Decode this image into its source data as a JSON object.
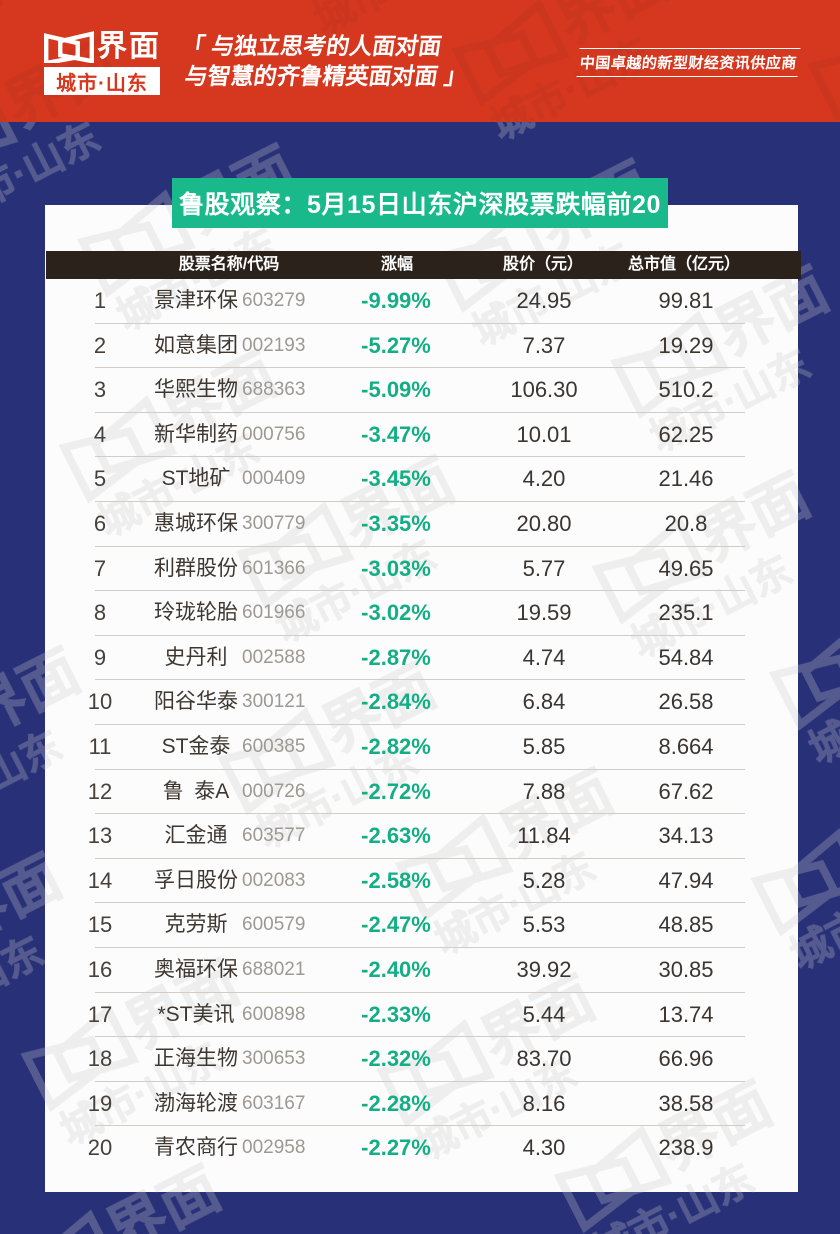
{
  "masthead": {
    "brand_name": "界面",
    "brand_sub": "城市·山东",
    "slogan_line1": "「 与独立思考的人面对面",
    "slogan_line2": "与智慧的齐鲁精英面对面 」",
    "tagline": "中国卓越的新型财经资讯供应商"
  },
  "banner": {
    "title": "鲁股观察：5月15日山东沪深股票跌幅前20"
  },
  "colors": {
    "header_red": "#d5381f",
    "body_blue": "#283078",
    "banner_green": "#19b98b",
    "change_green": "#13ae86",
    "table_head_dark": "#2b221b",
    "card_white": "#fcfcfc"
  },
  "chart_data": {
    "type": "table",
    "title": "鲁股观察：5月15日山东沪深股票跌幅前20",
    "columns": [
      "股票名称/代码",
      "涨幅",
      "股价（元）",
      "总市值（亿元）"
    ],
    "rows": [
      {
        "rank": "1",
        "name": "景津环保",
        "code": "603279",
        "change": "-9.99%",
        "price": "24.95",
        "cap": "99.81"
      },
      {
        "rank": "2",
        "name": "如意集团",
        "code": "002193",
        "change": "-5.27%",
        "price": "7.37",
        "cap": "19.29"
      },
      {
        "rank": "3",
        "name": "华熙生物",
        "code": "688363",
        "change": "-5.09%",
        "price": "106.30",
        "cap": "510.2"
      },
      {
        "rank": "4",
        "name": "新华制药",
        "code": "000756",
        "change": "-3.47%",
        "price": "10.01",
        "cap": "62.25"
      },
      {
        "rank": "5",
        "name": "ST地矿",
        "code": "000409",
        "change": "-3.45%",
        "price": "4.20",
        "cap": "21.46"
      },
      {
        "rank": "6",
        "name": "惠城环保",
        "code": "300779",
        "change": "-3.35%",
        "price": "20.80",
        "cap": "20.8"
      },
      {
        "rank": "7",
        "name": "利群股份",
        "code": "601366",
        "change": "-3.03%",
        "price": "5.77",
        "cap": "49.65"
      },
      {
        "rank": "8",
        "name": "玲珑轮胎",
        "code": "601966",
        "change": "-3.02%",
        "price": "19.59",
        "cap": "235.1"
      },
      {
        "rank": "9",
        "name": "史丹利",
        "code": "002588",
        "change": "-2.87%",
        "price": "4.74",
        "cap": "54.84"
      },
      {
        "rank": "10",
        "name": "阳谷华泰",
        "code": "300121",
        "change": "-2.84%",
        "price": "6.84",
        "cap": "26.58"
      },
      {
        "rank": "11",
        "name": "ST金泰",
        "code": "600385",
        "change": "-2.82%",
        "price": "5.85",
        "cap": "8.664"
      },
      {
        "rank": "12",
        "name": "鲁 泰A",
        "code": "000726",
        "change": "-2.72%",
        "price": "7.88",
        "cap": "67.62"
      },
      {
        "rank": "13",
        "name": "汇金通",
        "code": "603577",
        "change": "-2.63%",
        "price": "11.84",
        "cap": "34.13"
      },
      {
        "rank": "14",
        "name": "孚日股份",
        "code": "002083",
        "change": "-2.58%",
        "price": "5.28",
        "cap": "47.94"
      },
      {
        "rank": "15",
        "name": "克劳斯",
        "code": "600579",
        "change": "-2.47%",
        "price": "5.53",
        "cap": "48.85"
      },
      {
        "rank": "16",
        "name": "奥福环保",
        "code": "688021",
        "change": "-2.40%",
        "price": "39.92",
        "cap": "30.85"
      },
      {
        "rank": "17",
        "name": "*ST美讯",
        "code": "600898",
        "change": "-2.33%",
        "price": "5.44",
        "cap": "13.74"
      },
      {
        "rank": "18",
        "name": "正海生物",
        "code": "300653",
        "change": "-2.32%",
        "price": "83.70",
        "cap": "66.96"
      },
      {
        "rank": "19",
        "name": "渤海轮渡",
        "code": "603167",
        "change": "-2.28%",
        "price": "8.16",
        "cap": "38.58"
      },
      {
        "rank": "20",
        "name": "青农商行",
        "code": "002958",
        "change": "-2.27%",
        "price": "4.30",
        "cap": "238.9"
      }
    ]
  }
}
